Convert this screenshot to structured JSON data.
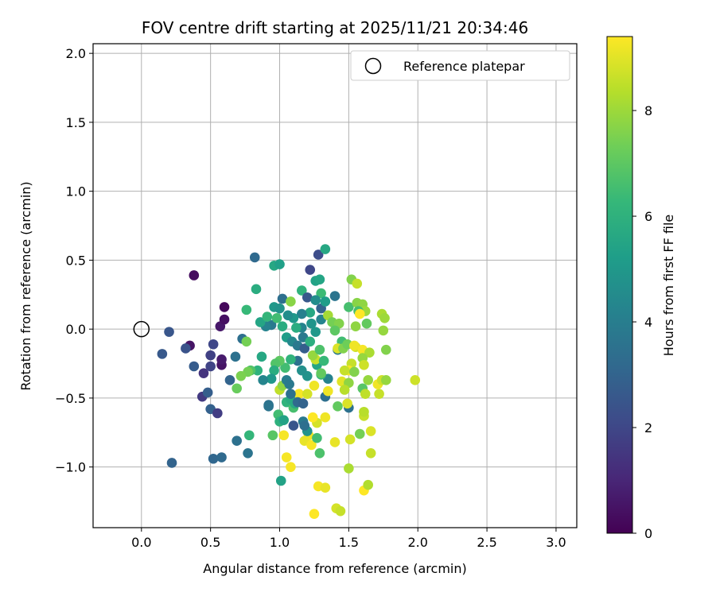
{
  "chart_data": {
    "type": "scatter",
    "title": "FOV centre drift starting at 2025/11/21 20:34:46",
    "xlabel": "Angular distance from reference (arcmin)",
    "ylabel": "Rotation from reference (arcmin)",
    "xlim": [
      -0.35,
      3.15
    ],
    "ylim": [
      -1.44,
      2.07
    ],
    "xticks": [
      0.0,
      0.5,
      1.0,
      1.5,
      2.0,
      2.5,
      3.0
    ],
    "xtick_labels": [
      "0.0",
      "0.5",
      "1.0",
      "1.5",
      "2.0",
      "2.5",
      "3.0"
    ],
    "yticks": [
      -1.0,
      -0.5,
      0.0,
      0.5,
      1.0,
      1.5,
      2.0
    ],
    "ytick_labels": [
      "−1.0",
      "−0.5",
      "0.0",
      "0.5",
      "1.0",
      "1.5",
      "2.0"
    ],
    "grid": true,
    "legend": {
      "location": "top-right",
      "entries": [
        "Reference platepar"
      ]
    },
    "reference_point": {
      "x": 0.0,
      "y": 0.0,
      "label": "Reference platepar"
    },
    "colorbar": {
      "label": "Hours from first FF file",
      "range": [
        0,
        9.4
      ],
      "ticks": [
        0,
        2,
        4,
        6,
        8
      ],
      "tick_labels": [
        "0",
        "2",
        "4",
        "6",
        "8"
      ],
      "colormap": "viridis"
    },
    "points": [
      [
        0.38,
        0.39,
        0.3
      ],
      [
        0.6,
        0.16,
        0.2
      ],
      [
        0.35,
        -0.12,
        0.5
      ],
      [
        0.57,
        0.02,
        0.6
      ],
      [
        0.6,
        0.07,
        0.4
      ],
      [
        0.58,
        -0.26,
        0.5
      ],
      [
        0.58,
        -0.22,
        0.7
      ],
      [
        0.45,
        -0.32,
        1.4
      ],
      [
        0.44,
        -0.49,
        1.6
      ],
      [
        0.5,
        -0.19,
        1.8
      ],
      [
        0.52,
        -0.11,
        2.0
      ],
      [
        0.5,
        -0.27,
        1.9
      ],
      [
        0.2,
        -0.02,
        2.5
      ],
      [
        0.15,
        -0.18,
        2.6
      ],
      [
        0.32,
        -0.14,
        2.4
      ],
      [
        0.38,
        -0.27,
        2.7
      ],
      [
        0.48,
        -0.46,
        2.8
      ],
      [
        0.5,
        -0.58,
        2.9
      ],
      [
        0.55,
        -0.61,
        1.7
      ],
      [
        0.64,
        -0.37,
        3.0
      ],
      [
        0.73,
        -0.07,
        3.4
      ],
      [
        0.68,
        -0.2,
        3.5
      ],
      [
        0.22,
        -0.97,
        3.0
      ],
      [
        0.52,
        -0.94,
        3.1
      ],
      [
        0.58,
        -0.93,
        3.2
      ],
      [
        0.69,
        -0.81,
        3.5
      ],
      [
        0.77,
        -0.9,
        3.6
      ],
      [
        0.82,
        0.52,
        3.2
      ],
      [
        1.22,
        0.43,
        2.0
      ],
      [
        1.28,
        0.54,
        2.2
      ],
      [
        1.33,
        0.58,
        5.6
      ],
      [
        0.96,
        0.46,
        5.6
      ],
      [
        1.0,
        0.47,
        5.3
      ],
      [
        1.26,
        0.35,
        5.4
      ],
      [
        1.29,
        0.36,
        5.5
      ],
      [
        0.83,
        0.29,
        5.8
      ],
      [
        0.76,
        0.14,
        6.3
      ],
      [
        1.16,
        0.28,
        6.1
      ],
      [
        1.2,
        0.23,
        2.6
      ],
      [
        1.02,
        0.22,
        3.4
      ],
      [
        1.08,
        0.2,
        7.7
      ],
      [
        1.3,
        0.26,
        6.4
      ],
      [
        1.4,
        0.24,
        3.6
      ],
      [
        0.96,
        0.16,
        5.0
      ],
      [
        1.0,
        0.15,
        4.8
      ],
      [
        0.94,
        0.03,
        3.8
      ],
      [
        0.9,
        0.02,
        4.2
      ],
      [
        0.86,
        0.05,
        5.5
      ],
      [
        0.91,
        0.09,
        6.2
      ],
      [
        0.98,
        0.08,
        6.5
      ],
      [
        1.02,
        0.02,
        5.8
      ],
      [
        1.05,
        -0.06,
        5.2
      ],
      [
        1.09,
        -0.09,
        4.4
      ],
      [
        1.13,
        -0.12,
        3.8
      ],
      [
        1.18,
        -0.14,
        2.8
      ],
      [
        1.16,
        0.01,
        4.2
      ],
      [
        1.23,
        0.04,
        4.9
      ],
      [
        1.26,
        -0.02,
        5.0
      ],
      [
        1.3,
        0.07,
        4.2
      ],
      [
        1.22,
        0.12,
        5.6
      ],
      [
        1.16,
        0.11,
        4.1
      ],
      [
        1.3,
        0.15,
        3.0
      ],
      [
        1.26,
        0.21,
        4.6
      ],
      [
        1.33,
        0.2,
        5.2
      ],
      [
        1.35,
        0.1,
        8.1
      ],
      [
        1.38,
        0.05,
        7.4
      ],
      [
        1.43,
        0.04,
        7.6
      ],
      [
        1.4,
        -0.01,
        7.0
      ],
      [
        1.45,
        -0.09,
        6.5
      ],
      [
        1.5,
        0.16,
        6.6
      ],
      [
        1.52,
        0.36,
        7.6
      ],
      [
        1.56,
        0.33,
        8.6
      ],
      [
        1.56,
        0.19,
        7.7
      ],
      [
        1.6,
        0.18,
        7.8
      ],
      [
        1.62,
        0.13,
        8.0
      ],
      [
        1.57,
        0.13,
        6.6
      ],
      [
        1.55,
        0.02,
        7.8
      ],
      [
        1.63,
        0.04,
        7.1
      ],
      [
        1.58,
        0.11,
        9.4
      ],
      [
        1.74,
        0.11,
        8.2
      ],
      [
        1.76,
        0.08,
        8.0
      ],
      [
        1.75,
        -0.01,
        7.9
      ],
      [
        1.77,
        -0.15,
        7.6
      ],
      [
        1.55,
        -0.13,
        8.7
      ],
      [
        1.6,
        -0.15,
        9.3
      ],
      [
        1.65,
        -0.17,
        8.2
      ],
      [
        1.6,
        -0.21,
        7.9
      ],
      [
        1.52,
        -0.25,
        8.6
      ],
      [
        1.5,
        -0.3,
        9.3
      ],
      [
        1.47,
        -0.3,
        8.6
      ],
      [
        1.45,
        -0.38,
        9.0
      ],
      [
        1.5,
        -0.39,
        7.8
      ],
      [
        1.54,
        -0.31,
        7.6
      ],
      [
        1.61,
        -0.26,
        8.7
      ],
      [
        1.64,
        -0.37,
        7.9
      ],
      [
        1.6,
        -0.43,
        6.9
      ],
      [
        1.62,
        -0.47,
        8.5
      ],
      [
        1.72,
        -0.47,
        8.6
      ],
      [
        1.71,
        -0.4,
        9.2
      ],
      [
        1.74,
        -0.37,
        8.7
      ],
      [
        1.77,
        -0.37,
        7.9
      ],
      [
        1.98,
        -0.37,
        8.7
      ],
      [
        1.47,
        -0.44,
        8.4
      ],
      [
        1.5,
        -0.57,
        3.5
      ],
      [
        1.49,
        -0.54,
        8.9
      ],
      [
        1.42,
        -0.56,
        7.1
      ],
      [
        1.58,
        -0.76,
        7.4
      ],
      [
        1.61,
        -0.63,
        8.6
      ],
      [
        1.61,
        -0.6,
        8.4
      ],
      [
        1.66,
        -0.74,
        8.9
      ],
      [
        1.51,
        -0.8,
        8.8
      ],
      [
        1.4,
        -0.82,
        9.1
      ],
      [
        1.33,
        -0.64,
        9.2
      ],
      [
        1.27,
        -0.68,
        8.8
      ],
      [
        1.24,
        -0.64,
        9.4
      ],
      [
        1.21,
        -0.77,
        9.2
      ],
      [
        1.18,
        -0.81,
        9.1
      ],
      [
        1.23,
        -0.84,
        9.3
      ],
      [
        1.27,
        -0.79,
        6.5
      ],
      [
        1.29,
        -0.9,
        6.7
      ],
      [
        1.2,
        -0.74,
        4.8
      ],
      [
        1.17,
        -0.67,
        3.8
      ],
      [
        1.1,
        -0.7,
        2.5
      ],
      [
        1.03,
        -0.77,
        9.3
      ],
      [
        0.95,
        -0.77,
        6.9
      ],
      [
        0.99,
        -0.62,
        6.5
      ],
      [
        1.0,
        -0.67,
        6.0
      ],
      [
        1.03,
        -0.66,
        5.4
      ],
      [
        1.05,
        -0.53,
        6.1
      ],
      [
        1.08,
        -0.51,
        5.8
      ],
      [
        1.1,
        -0.57,
        6.6
      ],
      [
        1.11,
        -0.54,
        5.7
      ],
      [
        1.14,
        -0.47,
        9.3
      ],
      [
        1.2,
        -0.47,
        8.8
      ],
      [
        1.25,
        -0.41,
        9.2
      ],
      [
        1.33,
        -0.49,
        3.4
      ],
      [
        1.35,
        -0.45,
        9.2
      ],
      [
        1.35,
        -0.36,
        4.2
      ],
      [
        1.3,
        -0.33,
        6.2
      ],
      [
        1.27,
        -0.26,
        5.5
      ],
      [
        1.26,
        -0.22,
        8.6
      ],
      [
        1.24,
        -0.19,
        7.9
      ],
      [
        1.29,
        -0.15,
        6.7
      ],
      [
        1.32,
        -0.23,
        6.3
      ],
      [
        1.3,
        -0.32,
        7.1
      ],
      [
        1.2,
        -0.34,
        4.8
      ],
      [
        1.16,
        -0.3,
        4.7
      ],
      [
        1.13,
        -0.23,
        3.5
      ],
      [
        1.08,
        -0.22,
        6.1
      ],
      [
        1.04,
        -0.28,
        6.5
      ],
      [
        1.0,
        -0.23,
        7.0
      ],
      [
        0.97,
        -0.25,
        6.8
      ],
      [
        0.96,
        -0.3,
        5.8
      ],
      [
        0.94,
        -0.36,
        5.0
      ],
      [
        0.88,
        -0.37,
        4.3
      ],
      [
        0.84,
        -0.3,
        6.0
      ],
      [
        0.87,
        -0.2,
        5.6
      ],
      [
        0.79,
        -0.3,
        6.8
      ],
      [
        0.77,
        -0.31,
        7.4
      ],
      [
        0.72,
        -0.34,
        7.5
      ],
      [
        0.69,
        -0.43,
        7.2
      ],
      [
        0.76,
        -0.09,
        7.4
      ],
      [
        0.78,
        -0.77,
        6.2
      ],
      [
        0.92,
        -0.55,
        3.5
      ],
      [
        0.92,
        -0.56,
        3.6
      ],
      [
        1.0,
        -0.44,
        8.5
      ],
      [
        1.02,
        -0.41,
        7.8
      ],
      [
        1.05,
        -0.37,
        4.0
      ],
      [
        1.07,
        -0.4,
        3.8
      ],
      [
        1.08,
        -0.47,
        3.5
      ],
      [
        1.13,
        -0.53,
        3.2
      ],
      [
        1.17,
        -0.54,
        3.0
      ],
      [
        1.18,
        -0.7,
        3.4
      ],
      [
        1.01,
        -1.1,
        5.4
      ],
      [
        1.05,
        -0.93,
        9.3
      ],
      [
        1.08,
        -1.0,
        9.3
      ],
      [
        1.25,
        -1.34,
        9.4
      ],
      [
        1.28,
        -1.14,
        9.3
      ],
      [
        1.33,
        -1.15,
        9.1
      ],
      [
        1.41,
        -1.3,
        8.8
      ],
      [
        1.44,
        -1.32,
        8.6
      ],
      [
        1.5,
        -1.01,
        8.2
      ],
      [
        1.61,
        -1.17,
        9.4
      ],
      [
        1.64,
        -1.13,
        8.3
      ],
      [
        1.66,
        -0.9,
        8.6
      ],
      [
        1.42,
        -0.15,
        3.8
      ],
      [
        1.42,
        -0.14,
        8.9
      ],
      [
        1.46,
        -0.14,
        7.6
      ],
      [
        1.49,
        -0.11,
        7.3
      ],
      [
        1.54,
        -0.12,
        9.2
      ],
      [
        1.12,
        0.01,
        5.8
      ],
      [
        1.17,
        -0.06,
        3.8
      ],
      [
        1.22,
        -0.09,
        5.9
      ],
      [
        1.1,
        0.08,
        5.0
      ],
      [
        1.06,
        0.1,
        4.6
      ]
    ]
  }
}
